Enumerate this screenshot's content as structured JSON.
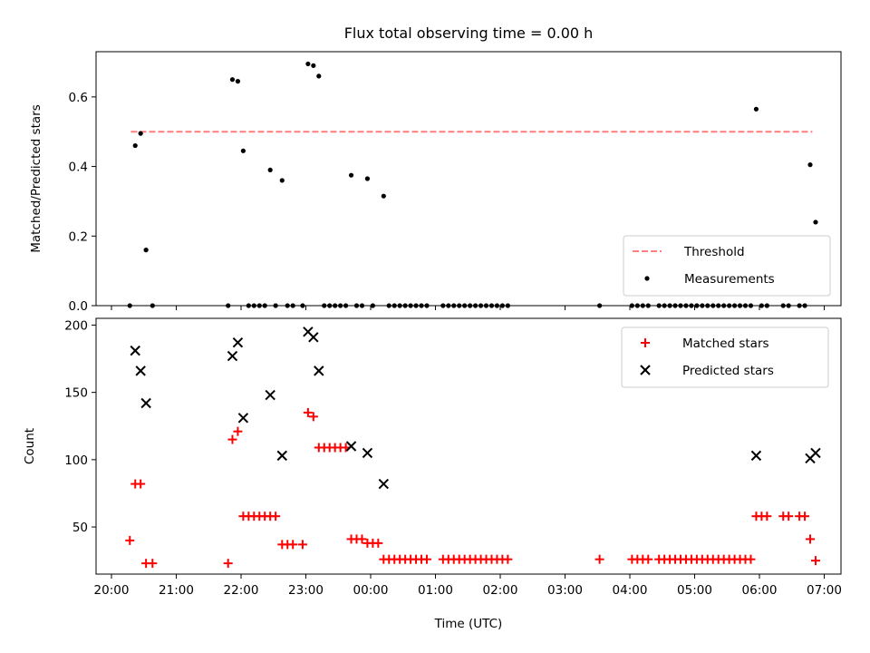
{
  "chart_data": [
    {
      "type": "scatter",
      "title": "Flux total observing time = 0.00 h",
      "ylabel": "Matched/Predicted stars",
      "xlabel": "",
      "x_axis": "time",
      "x_ticks": [
        "20:00",
        "21:00",
        "22:00",
        "23:00",
        "00:00",
        "01:00",
        "02:00",
        "03:00",
        "04:00",
        "05:00",
        "06:00",
        "07:00"
      ],
      "ylim": [
        0,
        0.73
      ],
      "y_ticks": [
        "0.0",
        "0.2",
        "0.4",
        "0.6"
      ],
      "legend_position": "bottom-right",
      "grid": false,
      "series": [
        {
          "name": "Threshold",
          "kind": "line",
          "style": "dashed",
          "color": "#ff7f7f",
          "points": [
            [
              "20:18",
              0.5
            ],
            [
              "06:49",
              0.5
            ]
          ]
        },
        {
          "name": "Measurements",
          "kind": "scatter",
          "marker": "dot",
          "color": "#000000",
          "points": [
            [
              "20:17",
              0.0
            ],
            [
              "20:22",
              0.46
            ],
            [
              "20:27",
              0.495
            ],
            [
              "20:32",
              0.16
            ],
            [
              "20:38",
              0.0
            ],
            [
              "21:48",
              0.0
            ],
            [
              "21:52",
              0.65
            ],
            [
              "21:57",
              0.645
            ],
            [
              "22:02",
              0.445
            ],
            [
              "22:07",
              0.0
            ],
            [
              "22:12",
              0.0
            ],
            [
              "22:17",
              0.0
            ],
            [
              "22:22",
              0.0
            ],
            [
              "22:27",
              0.39
            ],
            [
              "22:32",
              0.0
            ],
            [
              "22:38",
              0.36
            ],
            [
              "22:43",
              0.0
            ],
            [
              "22:48",
              0.0
            ],
            [
              "22:57",
              0.0
            ],
            [
              "23:02",
              0.695
            ],
            [
              "23:07",
              0.69
            ],
            [
              "23:12",
              0.66
            ],
            [
              "23:17",
              0.0
            ],
            [
              "23:22",
              0.0
            ],
            [
              "23:27",
              0.0
            ],
            [
              "23:32",
              0.0
            ],
            [
              "23:37",
              0.0
            ],
            [
              "23:42",
              0.375
            ],
            [
              "23:47",
              0.0
            ],
            [
              "23:52",
              0.0
            ],
            [
              "23:57",
              0.365
            ],
            [
              "00:02",
              0.0
            ],
            [
              "00:12",
              0.315
            ],
            [
              "00:17",
              0.0
            ],
            [
              "00:22",
              0.0
            ],
            [
              "00:27",
              0.0
            ],
            [
              "00:32",
              0.0
            ],
            [
              "00:37",
              0.0
            ],
            [
              "00:42",
              0.0
            ],
            [
              "00:47",
              0.0
            ],
            [
              "00:52",
              0.0
            ],
            [
              "01:07",
              0.0
            ],
            [
              "01:12",
              0.0
            ],
            [
              "01:17",
              0.0
            ],
            [
              "01:22",
              0.0
            ],
            [
              "01:27",
              0.0
            ],
            [
              "01:32",
              0.0
            ],
            [
              "01:37",
              0.0
            ],
            [
              "01:42",
              0.0
            ],
            [
              "01:47",
              0.0
            ],
            [
              "01:52",
              0.0
            ],
            [
              "01:57",
              0.0
            ],
            [
              "02:02",
              0.0
            ],
            [
              "02:07",
              0.0
            ],
            [
              "03:32",
              0.0
            ],
            [
              "04:02",
              0.0
            ],
            [
              "04:07",
              0.0
            ],
            [
              "04:12",
              0.0
            ],
            [
              "04:17",
              0.0
            ],
            [
              "04:27",
              0.0
            ],
            [
              "04:32",
              0.0
            ],
            [
              "04:37",
              0.0
            ],
            [
              "04:42",
              0.0
            ],
            [
              "04:47",
              0.0
            ],
            [
              "04:52",
              0.0
            ],
            [
              "04:57",
              0.0
            ],
            [
              "05:02",
              0.0
            ],
            [
              "05:07",
              0.0
            ],
            [
              "05:12",
              0.0
            ],
            [
              "05:17",
              0.0
            ],
            [
              "05:22",
              0.0
            ],
            [
              "05:27",
              0.0
            ],
            [
              "05:32",
              0.0
            ],
            [
              "05:37",
              0.0
            ],
            [
              "05:42",
              0.0
            ],
            [
              "05:47",
              0.0
            ],
            [
              "05:52",
              0.0
            ],
            [
              "05:57",
              0.565
            ],
            [
              "06:02",
              0.0
            ],
            [
              "06:07",
              0.0
            ],
            [
              "06:22",
              0.0
            ],
            [
              "06:27",
              0.0
            ],
            [
              "06:37",
              0.0
            ],
            [
              "06:42",
              0.0
            ],
            [
              "06:47",
              0.405
            ],
            [
              "06:52",
              0.24
            ]
          ]
        }
      ]
    },
    {
      "type": "scatter",
      "title": "",
      "ylabel": "Count",
      "xlabel": "Time (UTC)",
      "x_axis": "time",
      "x_ticks": [
        "20:00",
        "21:00",
        "22:00",
        "23:00",
        "00:00",
        "01:00",
        "02:00",
        "03:00",
        "04:00",
        "05:00",
        "06:00",
        "07:00"
      ],
      "ylim": [
        15,
        205
      ],
      "y_ticks": [
        "50",
        "100",
        "150",
        "200"
      ],
      "legend_position": "top-right",
      "grid": false,
      "series": [
        {
          "name": "Matched stars",
          "kind": "scatter",
          "marker": "plus",
          "color": "#ff0000",
          "points": [
            [
              "20:17",
              40
            ],
            [
              "20:22",
              82
            ],
            [
              "20:27",
              82
            ],
            [
              "20:32",
              23
            ],
            [
              "20:38",
              23
            ],
            [
              "21:48",
              23
            ],
            [
              "21:52",
              115
            ],
            [
              "21:57",
              121
            ],
            [
              "22:02",
              58
            ],
            [
              "22:07",
              58
            ],
            [
              "22:12",
              58
            ],
            [
              "22:17",
              58
            ],
            [
              "22:22",
              58
            ],
            [
              "22:27",
              58
            ],
            [
              "22:32",
              58
            ],
            [
              "22:38",
              37
            ],
            [
              "22:43",
              37
            ],
            [
              "22:48",
              37
            ],
            [
              "22:57",
              37
            ],
            [
              "23:02",
              135
            ],
            [
              "23:07",
              132
            ],
            [
              "23:12",
              109
            ],
            [
              "23:17",
              109
            ],
            [
              "23:22",
              109
            ],
            [
              "23:27",
              109
            ],
            [
              "23:32",
              109
            ],
            [
              "23:37",
              109
            ],
            [
              "23:42",
              41
            ],
            [
              "23:47",
              41
            ],
            [
              "23:52",
              41
            ],
            [
              "23:57",
              38
            ],
            [
              "00:02",
              38
            ],
            [
              "00:07",
              38
            ],
            [
              "00:12",
              26
            ],
            [
              "00:17",
              26
            ],
            [
              "00:22",
              26
            ],
            [
              "00:27",
              26
            ],
            [
              "00:32",
              26
            ],
            [
              "00:37",
              26
            ],
            [
              "00:42",
              26
            ],
            [
              "00:47",
              26
            ],
            [
              "00:52",
              26
            ],
            [
              "01:07",
              26
            ],
            [
              "01:12",
              26
            ],
            [
              "01:17",
              26
            ],
            [
              "01:22",
              26
            ],
            [
              "01:27",
              26
            ],
            [
              "01:32",
              26
            ],
            [
              "01:37",
              26
            ],
            [
              "01:42",
              26
            ],
            [
              "01:47",
              26
            ],
            [
              "01:52",
              26
            ],
            [
              "01:57",
              26
            ],
            [
              "02:02",
              26
            ],
            [
              "02:07",
              26
            ],
            [
              "03:32",
              26
            ],
            [
              "04:02",
              26
            ],
            [
              "04:07",
              26
            ],
            [
              "04:12",
              26
            ],
            [
              "04:17",
              26
            ],
            [
              "04:27",
              26
            ],
            [
              "04:32",
              26
            ],
            [
              "04:37",
              26
            ],
            [
              "04:42",
              26
            ],
            [
              "04:47",
              26
            ],
            [
              "04:52",
              26
            ],
            [
              "04:57",
              26
            ],
            [
              "05:02",
              26
            ],
            [
              "05:07",
              26
            ],
            [
              "05:12",
              26
            ],
            [
              "05:17",
              26
            ],
            [
              "05:22",
              26
            ],
            [
              "05:27",
              26
            ],
            [
              "05:32",
              26
            ],
            [
              "05:37",
              26
            ],
            [
              "05:42",
              26
            ],
            [
              "05:47",
              26
            ],
            [
              "05:52",
              26
            ],
            [
              "05:57",
              58
            ],
            [
              "06:02",
              58
            ],
            [
              "06:07",
              58
            ],
            [
              "06:22",
              58
            ],
            [
              "06:27",
              58
            ],
            [
              "06:37",
              58
            ],
            [
              "06:42",
              58
            ],
            [
              "06:47",
              41
            ],
            [
              "06:52",
              25
            ]
          ]
        },
        {
          "name": "Predicted stars",
          "kind": "scatter",
          "marker": "x",
          "color": "#000000",
          "points": [
            [
              "20:22",
              181
            ],
            [
              "20:27",
              166
            ],
            [
              "20:32",
              142
            ],
            [
              "21:52",
              177
            ],
            [
              "21:57",
              187
            ],
            [
              "22:02",
              131
            ],
            [
              "22:27",
              148
            ],
            [
              "22:38",
              103
            ],
            [
              "23:02",
              195
            ],
            [
              "23:07",
              191
            ],
            [
              "23:12",
              166
            ],
            [
              "23:42",
              110
            ],
            [
              "23:57",
              105
            ],
            [
              "00:12",
              82
            ],
            [
              "05:57",
              103
            ],
            [
              "06:47",
              101
            ],
            [
              "06:52",
              105
            ]
          ]
        }
      ]
    }
  ]
}
